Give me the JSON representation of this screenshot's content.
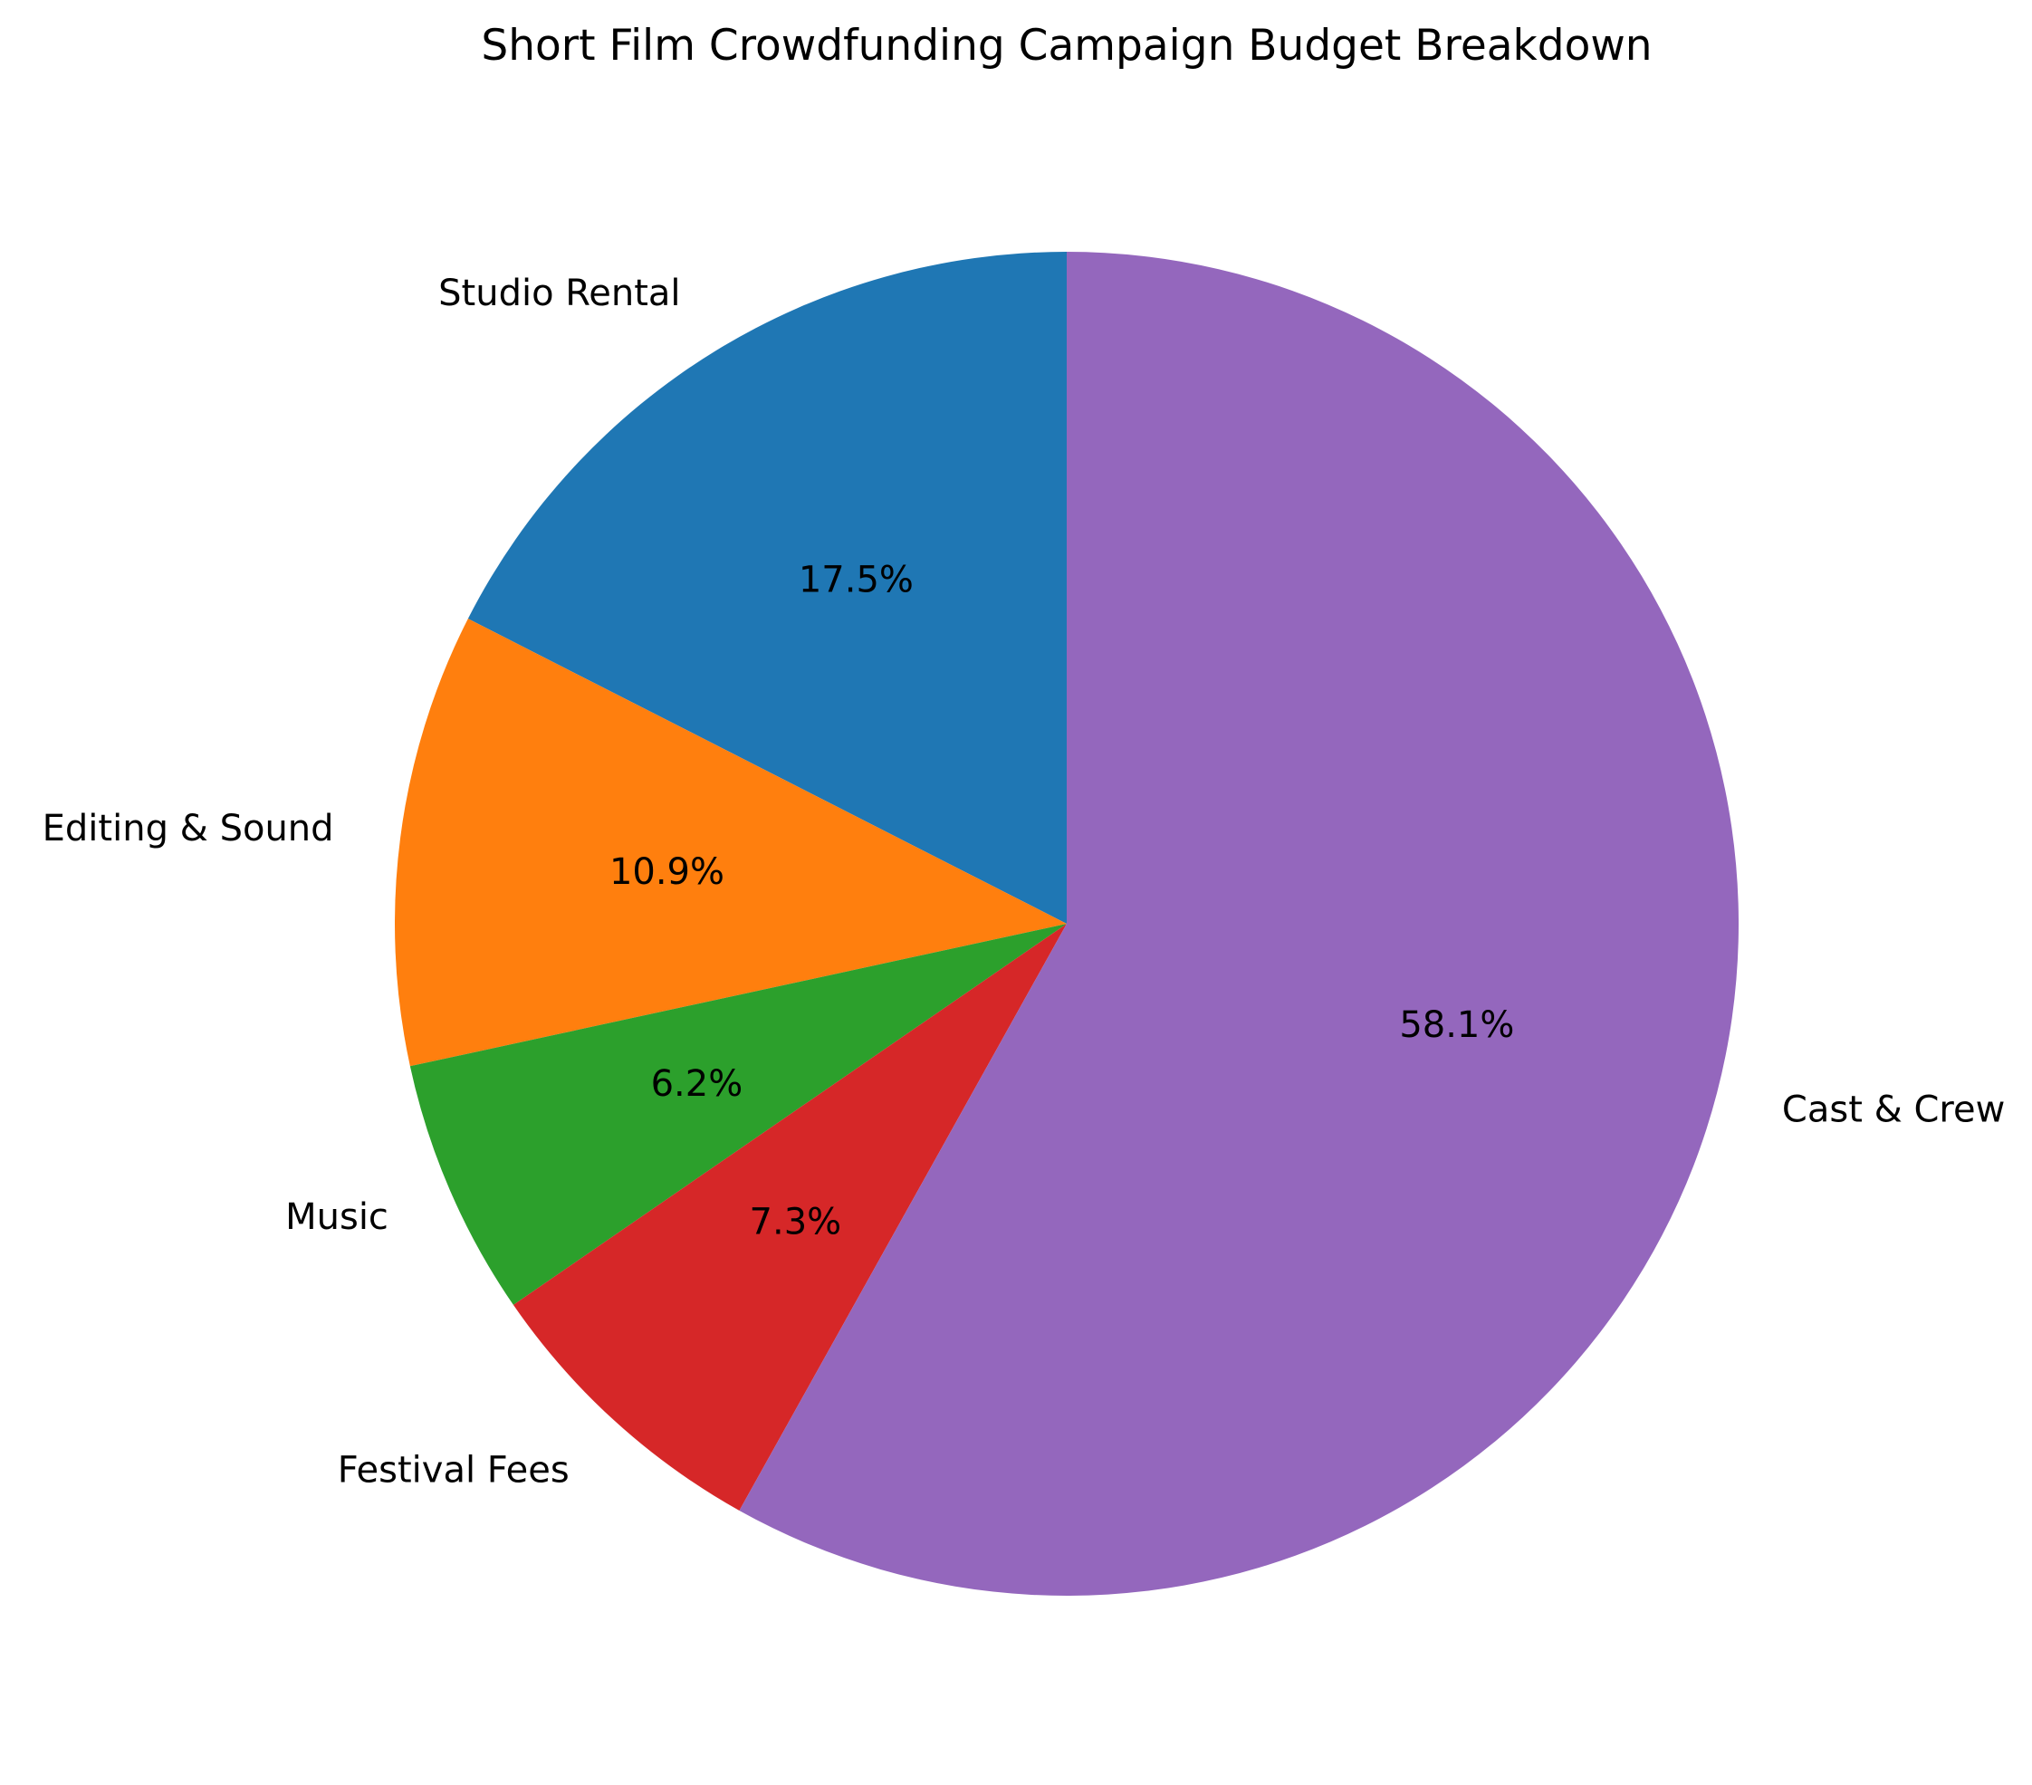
{
  "chart_data": {
    "type": "pie",
    "title": "Short Film Crowdfunding Campaign Budget Breakdown",
    "start_angle_deg": 90,
    "direction": "counterclockwise",
    "slices": [
      {
        "label": "Studio Rental",
        "percent": 17.5,
        "percent_label": "17.5%",
        "color": "#1f77b4"
      },
      {
        "label": "Editing & Sound",
        "percent": 10.9,
        "percent_label": "10.9%",
        "color": "#ff7f0e"
      },
      {
        "label": "Music",
        "percent": 6.2,
        "percent_label": "6.2%",
        "color": "#2ca02c"
      },
      {
        "label": "Festival Fees",
        "percent": 7.3,
        "percent_label": "7.3%",
        "color": "#d62728"
      },
      {
        "label": "Cast & Crew",
        "percent": 58.1,
        "percent_label": "58.1%",
        "color": "#9467bd"
      }
    ]
  }
}
